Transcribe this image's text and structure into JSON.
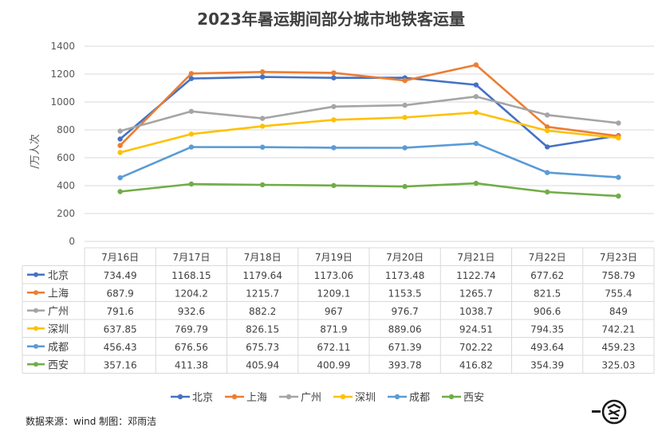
{
  "chart_data": {
    "type": "line",
    "title": "2023年暑运期间部分城市地铁客运量",
    "ylabel": "/万人次",
    "ylim": [
      0,
      1400
    ],
    "yticks": [
      0,
      200,
      400,
      600,
      800,
      1000,
      1200,
      1400
    ],
    "grid": true,
    "legend_position": "bottom",
    "categories": [
      "7月16日",
      "7月17日",
      "7月18日",
      "7月19日",
      "7月20日",
      "7月21日",
      "7月22日",
      "7月23日"
    ],
    "series": [
      {
        "name": "北京",
        "color": "#4472C4",
        "values": [
          734.49,
          1168.15,
          1179.64,
          1173.06,
          1173.48,
          1122.74,
          677.62,
          758.79
        ]
      },
      {
        "name": "上海",
        "color": "#ED7D31",
        "values": [
          687.9,
          1204.2,
          1215.7,
          1209.1,
          1153.5,
          1265.7,
          821.5,
          755.4
        ]
      },
      {
        "name": "广州",
        "color": "#A5A5A5",
        "values": [
          791.6,
          932.6,
          882.2,
          967,
          976.7,
          1038.7,
          906.6,
          849
        ]
      },
      {
        "name": "深圳",
        "color": "#FFC000",
        "values": [
          637.85,
          769.79,
          826.15,
          871.9,
          889.06,
          924.51,
          794.35,
          742.21
        ]
      },
      {
        "name": "成都",
        "color": "#5B9BD5",
        "values": [
          456.43,
          676.56,
          675.73,
          672.11,
          671.39,
          702.22,
          493.64,
          459.23
        ]
      },
      {
        "name": "西安",
        "color": "#70AD47",
        "values": [
          357.16,
          411.38,
          405.94,
          400.99,
          393.78,
          416.82,
          354.39,
          325.03
        ]
      }
    ],
    "table_values": [
      [
        "734.49",
        "1168.15",
        "1179.64",
        "1173.06",
        "1173.48",
        "1122.74",
        "677.62",
        "758.79"
      ],
      [
        "687.9",
        "1204.2",
        "1215.7",
        "1209.1",
        "1153.5",
        "1265.7",
        "821.5",
        "755.4"
      ],
      [
        "791.6",
        "932.6",
        "882.2",
        "967",
        "976.7",
        "1038.7",
        "906.6",
        "849"
      ],
      [
        "637.85",
        "769.79",
        "826.15",
        "871.9",
        "889.06",
        "924.51",
        "794.35",
        "742.21"
      ],
      [
        "456.43",
        "676.56",
        "675.73",
        "672.11",
        "671.39",
        "702.22",
        "493.64",
        "459.23"
      ],
      [
        "357.16",
        "411.38",
        "405.94",
        "400.99",
        "393.78",
        "416.82",
        "354.39",
        "325.03"
      ]
    ]
  },
  "footer": {
    "source": "数据来源：wind  制图：邓雨洁"
  },
  "logo": {
    "text": "一客"
  }
}
